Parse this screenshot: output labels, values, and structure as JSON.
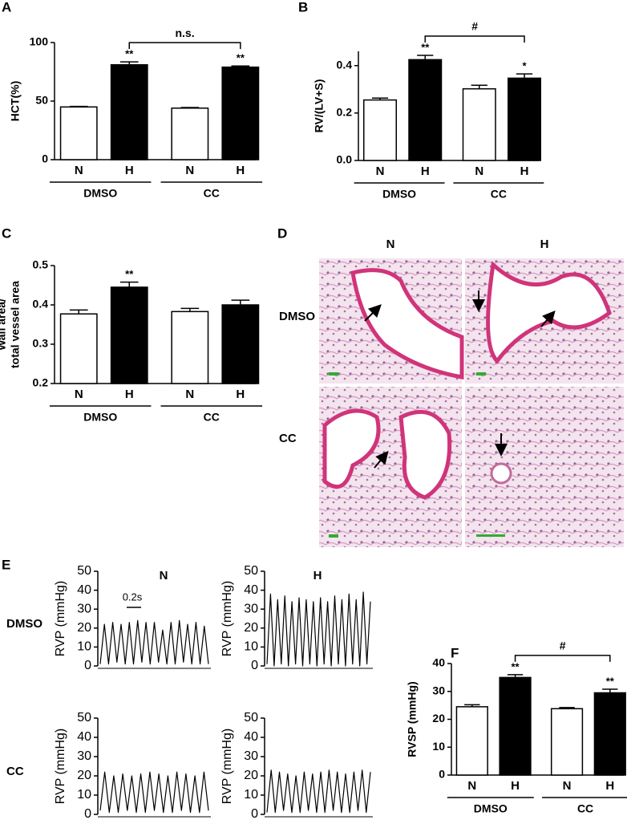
{
  "chart_data": [
    {
      "panel": "A",
      "type": "bar",
      "ylabel": [
        "HCT(%)"
      ],
      "ylim": [
        0,
        100
      ],
      "yticks": [
        0,
        50,
        100
      ],
      "colors": [
        "#ffffff",
        "#000000"
      ],
      "groups": [
        {
          "label": "DMSO",
          "categories": [
            "N",
            "H"
          ],
          "values": [
            45,
            81
          ],
          "errors": [
            0.5,
            2.5
          ],
          "stars": [
            null,
            "**"
          ]
        },
        {
          "label": "CC",
          "categories": [
            "N",
            "H"
          ],
          "values": [
            44,
            79
          ],
          "errors": [
            0.5,
            1
          ],
          "stars": [
            null,
            "**"
          ]
        }
      ],
      "comparison": "n.s."
    },
    {
      "panel": "B",
      "type": "bar",
      "ylabel": [
        "RV/(LV+S)"
      ],
      "ylim": [
        0,
        0.46
      ],
      "yticks": [
        {
          "value": 0,
          "label": "0.0"
        },
        0.2,
        0.4
      ],
      "colors": [
        "#ffffff",
        "#000000"
      ],
      "groups": [
        {
          "label": "DMSO",
          "categories": [
            "N",
            "H"
          ],
          "values": [
            0.255,
            0.425
          ],
          "errors": [
            0.008,
            0.018
          ],
          "stars": [
            null,
            "**"
          ]
        },
        {
          "label": "CC",
          "categories": [
            "N",
            "H"
          ],
          "values": [
            0.302,
            0.347
          ],
          "errors": [
            0.015,
            0.018
          ],
          "stars": [
            null,
            "*"
          ]
        }
      ],
      "comparison": "#"
    },
    {
      "panel": "C",
      "type": "bar",
      "ylabel": [
        "Wall area/",
        "total vessel area"
      ],
      "ylim": [
        0.2,
        0.5
      ],
      "yticks": [
        0.2,
        0.3,
        0.4,
        0.5
      ],
      "colors": [
        "#ffffff",
        "#000000"
      ],
      "groups": [
        {
          "label": "DMSO",
          "categories": [
            "N",
            "H"
          ],
          "values": [
            0.377,
            0.445
          ],
          "errors": [
            0.01,
            0.013
          ],
          "stars": [
            null,
            "**"
          ]
        },
        {
          "label": "CC",
          "categories": [
            "N",
            "H"
          ],
          "values": [
            0.383,
            0.4
          ],
          "errors": [
            0.008,
            0.012
          ],
          "stars": [
            null,
            null
          ]
        }
      ]
    },
    {
      "type": "line",
      "ylabel": [
        "RVP (mmHg)"
      ],
      "ylim": [
        0,
        50
      ],
      "yticks": [
        0,
        10,
        20,
        30,
        40,
        50
      ],
      "color": "#000000",
      "values": [
        1,
        22,
        1,
        23,
        2,
        22,
        1,
        23,
        1,
        24,
        2,
        23,
        1,
        23,
        2,
        19,
        1,
        23,
        1,
        24,
        2,
        22,
        1,
        23,
        1,
        21,
        1
      ]
    },
    {
      "type": "line",
      "ylabel": [
        "RVP (mmHg)"
      ],
      "ylim": [
        0,
        50
      ],
      "yticks": [
        0,
        10,
        20,
        30,
        40,
        50
      ],
      "color": "#000000",
      "values": [
        1,
        38,
        0,
        35,
        1,
        37,
        0,
        34,
        1,
        36,
        0,
        35,
        1,
        34,
        0,
        36,
        1,
        34,
        0,
        37,
        1,
        35,
        0,
        38,
        1,
        35,
        0,
        39,
        1,
        34
      ]
    },
    {
      "type": "line",
      "ylabel": [
        "RVP (mmHg)"
      ],
      "ylim": [
        0,
        50
      ],
      "yticks": [
        0,
        10,
        20,
        30,
        40,
        50
      ],
      "color": "#000000",
      "values": [
        2,
        22,
        1,
        20,
        1,
        21,
        2,
        20,
        1,
        21,
        1,
        22,
        2,
        21,
        1,
        20,
        1,
        22,
        2,
        21,
        1,
        20,
        1,
        22,
        2
      ]
    },
    {
      "type": "line",
      "ylabel": [
        "RVP (mmHg)"
      ],
      "ylim": [
        0,
        50
      ],
      "yticks": [
        0,
        10,
        20,
        30,
        40,
        50
      ],
      "color": "#000000",
      "values": [
        1,
        23,
        1,
        22,
        2,
        21,
        1,
        20,
        1,
        22,
        2,
        21,
        1,
        22,
        1,
        23,
        2,
        22,
        1,
        21,
        1,
        22,
        2,
        23,
        1,
        22
      ]
    },
    {
      "panel": "F",
      "type": "bar",
      "ylabel": [
        "RVSP (mmHg)"
      ],
      "ylim": [
        0,
        40
      ],
      "yticks": [
        0,
        10,
        20,
        30,
        40
      ],
      "colors": [
        "#ffffff",
        "#000000"
      ],
      "groups": [
        {
          "label": "DMSO",
          "categories": [
            "N",
            "H"
          ],
          "values": [
            24.5,
            35
          ],
          "errors": [
            0.7,
            1
          ],
          "stars": [
            null,
            "**"
          ]
        },
        {
          "label": "CC",
          "categories": [
            "N",
            "H"
          ],
          "values": [
            23.8,
            29.5
          ],
          "errors": [
            0.4,
            1.3
          ],
          "stars": [
            null,
            "**"
          ]
        }
      ],
      "comparison": "#"
    }
  ],
  "histology": {
    "panel": "D",
    "columns": [
      "N",
      "H"
    ],
    "rows": [
      "DMSO",
      "CC"
    ]
  },
  "traces": {
    "panel": "E",
    "columns": [
      "N",
      "H"
    ],
    "rows": [
      "DMSO",
      "CC"
    ],
    "scale_bar": "0.2s"
  }
}
